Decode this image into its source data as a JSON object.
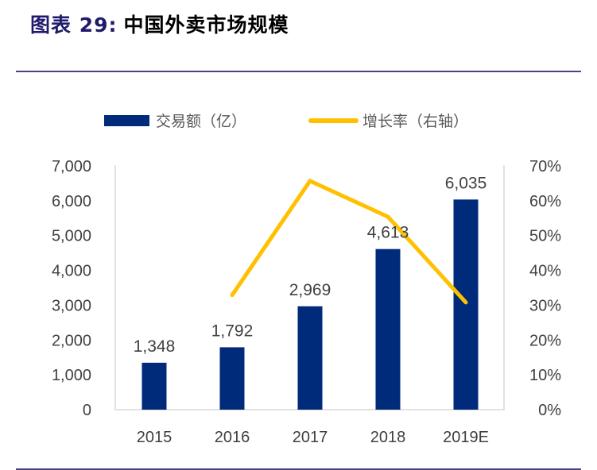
{
  "header": {
    "prefix": "图表 29:",
    "title": "中国外卖市场规模"
  },
  "chart_data": {
    "type": "bar+line",
    "categories": [
      "2015",
      "2016",
      "2017",
      "2018",
      "2019E"
    ],
    "series": [
      {
        "name": "交易额（亿）",
        "type": "bar",
        "axis": "left",
        "color": "#002a7a",
        "values": [
          1348,
          1792,
          2969,
          4613,
          6035
        ],
        "data_labels": [
          "1,348",
          "1,792",
          "2,969",
          "4,613",
          "6,035"
        ]
      },
      {
        "name": "增长率（右轴）",
        "type": "line",
        "axis": "right",
        "color": "#ffc000",
        "values": [
          null,
          32.9,
          65.7,
          55.4,
          30.8
        ]
      }
    ],
    "y_left": {
      "range": [
        0,
        7000
      ],
      "ticks": [
        "0",
        "1,000",
        "2,000",
        "3,000",
        "4,000",
        "5,000",
        "6,000",
        "7,000"
      ]
    },
    "y_right": {
      "range": [
        0,
        70
      ],
      "ticks": [
        "0%",
        "10%",
        "20%",
        "30%",
        "40%",
        "50%",
        "60%",
        "70%"
      ]
    },
    "legend": "top",
    "grid": false
  }
}
